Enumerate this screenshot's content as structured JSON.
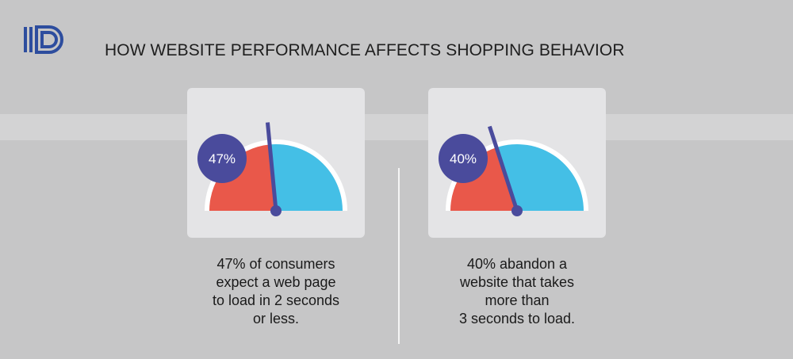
{
  "header": {
    "logo_text": "ID",
    "title": "HOW WEBSITE PERFORMANCE AFFECTS SHOPPING BEHAVIOR"
  },
  "colors": {
    "background": "#c6c6c7",
    "card": "#e4e4e6",
    "gauge_red": "#e9584a",
    "gauge_blue": "#44bfe6",
    "needle": "#4a4b9c",
    "logo": "#2d4d9e"
  },
  "stats": [
    {
      "badge": "47%",
      "value": 47,
      "caption": "47% of consumers\nexpect a web page\nto load in 2 seconds\nor less."
    },
    {
      "badge": "40%",
      "value": 40,
      "caption": "40% abandon a\nwebsite that takes\nmore than\n3 seconds to load."
    }
  ]
}
